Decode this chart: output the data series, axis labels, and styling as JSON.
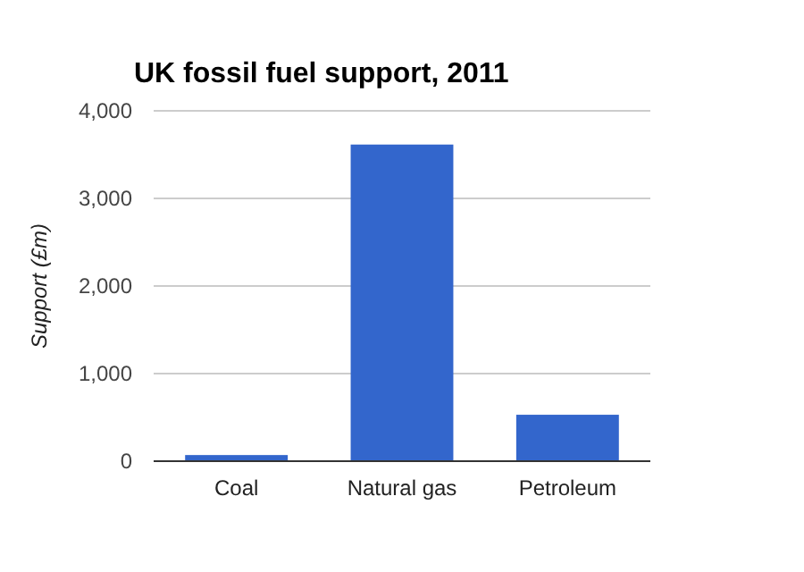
{
  "chart_data": {
    "type": "bar",
    "title": "UK fossil fuel support, 2011",
    "ylabel": "Support (£m)",
    "categories": [
      "Coal",
      "Natural gas",
      "Petroleum"
    ],
    "values": [
      70,
      3615,
      530
    ],
    "color": "#3366cc",
    "ylim": [
      0,
      4000
    ],
    "yticks": [
      {
        "value": 0,
        "label": "0"
      },
      {
        "value": 1000,
        "label": "1,000"
      },
      {
        "value": 2000,
        "label": "2,000"
      },
      {
        "value": 3000,
        "label": "3,000"
      },
      {
        "value": 4000,
        "label": "4,000"
      }
    ],
    "grid": "y"
  }
}
